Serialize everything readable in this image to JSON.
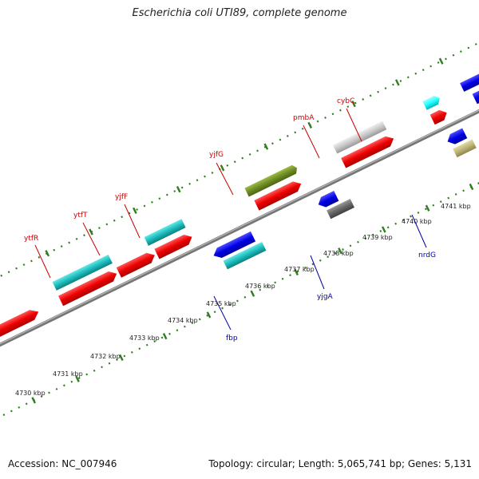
{
  "title": "Escherichia coli UTI89, complete genome",
  "footer": {
    "accession": "Accession: NC_007946",
    "summary": "Topology: circular; Length: 5,065,741 bp; Genes: 5,131"
  },
  "colors": {
    "forward_label": "#cc0000",
    "reverse_label": "#0000aa",
    "backbone": "#888888",
    "ticks": "#2e7d1e"
  },
  "kbp_labels": [
    "4730 kbp",
    "4731 kbp",
    "4732 kbp",
    "4733 kbp",
    "4734 kbp",
    "4735 kbp",
    "4736 kbp",
    "4737 kbp",
    "4738 kbp",
    "4739 kbp",
    "4740 kbp",
    "4741 kbp"
  ],
  "gene_labels": {
    "forward": [
      "ytfR",
      "ytfT",
      "yjfF",
      "yjfG",
      "pmbA",
      "cybC"
    ],
    "reverse": [
      "fbp",
      "yjgA",
      "nrdG"
    ]
  }
}
